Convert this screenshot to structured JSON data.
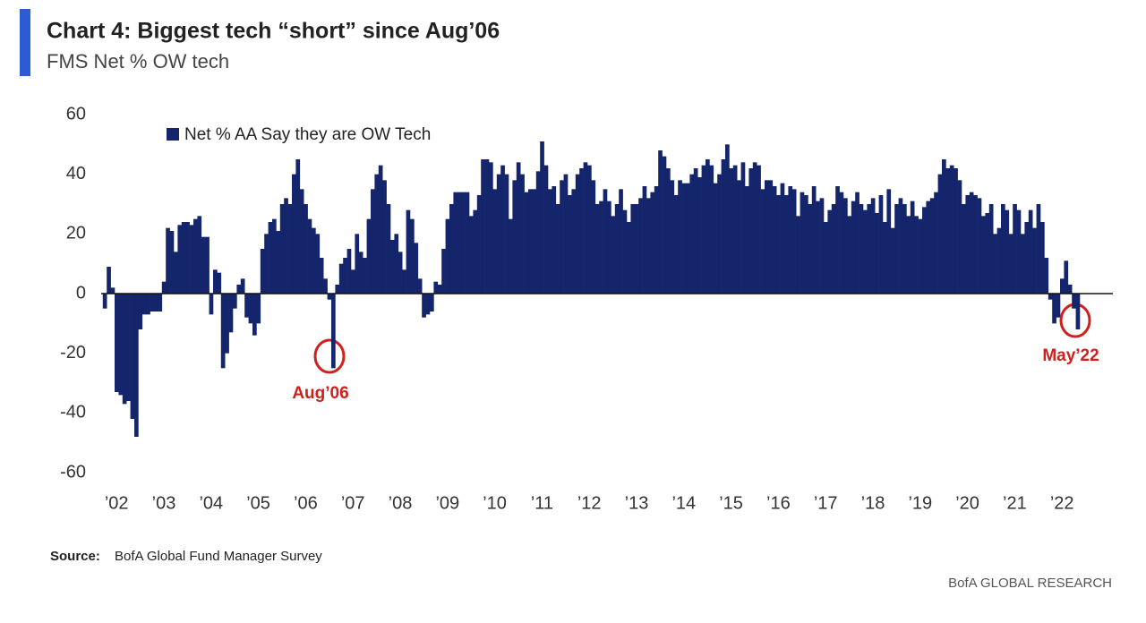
{
  "chart_data": {
    "type": "bar",
    "title": "Chart 4: Biggest tech “short” since Aug’06",
    "subtitle": "FMS Net % OW tech",
    "categories": [
      null,
      null,
      null,
      "’02",
      null,
      null,
      null,
      null,
      null,
      null,
      null,
      null,
      null,
      null,
      null,
      "’03",
      null,
      null,
      null,
      null,
      null,
      null,
      null,
      null,
      null,
      null,
      null,
      "’04",
      null,
      null,
      null,
      null,
      null,
      null,
      null,
      null,
      null,
      null,
      null,
      "’05",
      null,
      null,
      null,
      null,
      null,
      null,
      null,
      null,
      null,
      null,
      null,
      "’06",
      null,
      null,
      null,
      null,
      null,
      null,
      null,
      null,
      null,
      null,
      null,
      "’07",
      null,
      null,
      null,
      null,
      null,
      null,
      null,
      null,
      null,
      null,
      null,
      "’08",
      null,
      null,
      null,
      null,
      null,
      null,
      null,
      null,
      null,
      null,
      null,
      "’09",
      null,
      null,
      null,
      null,
      null,
      null,
      null,
      null,
      null,
      null,
      null,
      "’10",
      null,
      null,
      null,
      null,
      null,
      null,
      null,
      null,
      null,
      null,
      null,
      "’11",
      null,
      null,
      null,
      null,
      null,
      null,
      null,
      null,
      null,
      null,
      null,
      "’12",
      null,
      null,
      null,
      null,
      null,
      null,
      null,
      null,
      null,
      null,
      null,
      "’13",
      null,
      null,
      null,
      null,
      null,
      null,
      null,
      null,
      null,
      null,
      null,
      "’14",
      null,
      null,
      null,
      null,
      null,
      null,
      null,
      null,
      null,
      null,
      null,
      "’15",
      null,
      null,
      null,
      null,
      null,
      null,
      null,
      null,
      null,
      null,
      null,
      "’16",
      null,
      null,
      null,
      null,
      null,
      null,
      null,
      null,
      null,
      null,
      null,
      "’17",
      null,
      null,
      null,
      null,
      null,
      null,
      null,
      null,
      null,
      null,
      null,
      "’18",
      null,
      null,
      null,
      null,
      null,
      null,
      null,
      null,
      null,
      null,
      null,
      "’19",
      null,
      null,
      null,
      null,
      null,
      null,
      null,
      null,
      null,
      null,
      null,
      "’20",
      null,
      null,
      null,
      null,
      null,
      null,
      null,
      null,
      null,
      null,
      null,
      "’21",
      null,
      null,
      null,
      null,
      null,
      null,
      null,
      null,
      null,
      null,
      null,
      "’22",
      null,
      null,
      null,
      null
    ],
    "series": [
      {
        "name": "Net % AA Say they are OW Tech",
        "color": "#14256b",
        "values": [
          -5,
          9,
          2,
          -33,
          -34,
          -37,
          -36,
          -42,
          -48,
          -12,
          -7,
          -7,
          -6,
          -6,
          -6,
          4,
          22,
          21,
          14,
          23,
          24,
          24,
          23,
          25,
          26,
          19,
          19,
          -7,
          8,
          7,
          -25,
          -20,
          -13,
          -5,
          3,
          5,
          -8,
          -10,
          -14,
          -10,
          15,
          20,
          24,
          25,
          21,
          30,
          32,
          30,
          40,
          45,
          35,
          30,
          25,
          22,
          20,
          12,
          5,
          -2,
          -25,
          3,
          10,
          12,
          15,
          8,
          20,
          14,
          12,
          25,
          35,
          40,
          43,
          38,
          30,
          18,
          20,
          14,
          8,
          28,
          25,
          17,
          5,
          -8,
          -7,
          -6,
          4,
          3,
          15,
          25,
          30,
          34,
          34,
          34,
          34,
          26,
          28,
          33,
          45,
          45,
          44,
          35,
          40,
          43,
          40,
          25,
          38,
          44,
          40,
          34,
          35,
          35,
          41,
          51,
          43,
          35,
          36,
          30,
          38,
          40,
          33,
          35,
          40,
          42,
          44,
          43,
          38,
          30,
          31,
          35,
          31,
          26,
          30,
          35,
          28,
          24,
          30,
          30,
          32,
          36,
          32,
          34,
          36,
          48,
          46,
          42,
          38,
          33,
          38,
          37,
          37,
          40,
          42,
          39,
          43,
          45,
          43,
          37,
          40,
          45,
          50,
          42,
          43,
          38,
          44,
          36,
          42,
          44,
          43,
          35,
          38,
          38,
          36,
          33,
          37,
          33,
          36,
          35,
          26,
          34,
          33,
          30,
          36,
          31,
          32,
          24,
          28,
          30,
          36,
          34,
          32,
          26,
          31,
          34,
          30,
          28,
          30,
          32,
          27,
          33,
          24,
          35,
          22,
          30,
          32,
          30,
          26,
          31,
          26,
          25,
          29,
          31,
          32,
          34,
          40,
          45,
          42,
          43,
          42,
          38,
          30,
          33,
          34,
          33,
          32,
          26,
          27,
          30,
          20,
          22,
          30,
          28,
          20,
          30,
          28,
          20,
          24,
          28,
          22,
          30,
          24,
          12,
          -2,
          -10,
          -8,
          5,
          11,
          3,
          -5,
          -12
        ]
      }
    ],
    "ylim": [
      -60,
      60
    ],
    "yticks": [
      -60,
      -40,
      -20,
      0,
      20,
      40,
      60
    ],
    "annotations": [
      "Aug’06",
      "May’22"
    ],
    "source": {
      "label": "Source:",
      "text": "BofA Global Fund Manager Survey"
    },
    "footer": "BofA GLOBAL RESEARCH"
  }
}
